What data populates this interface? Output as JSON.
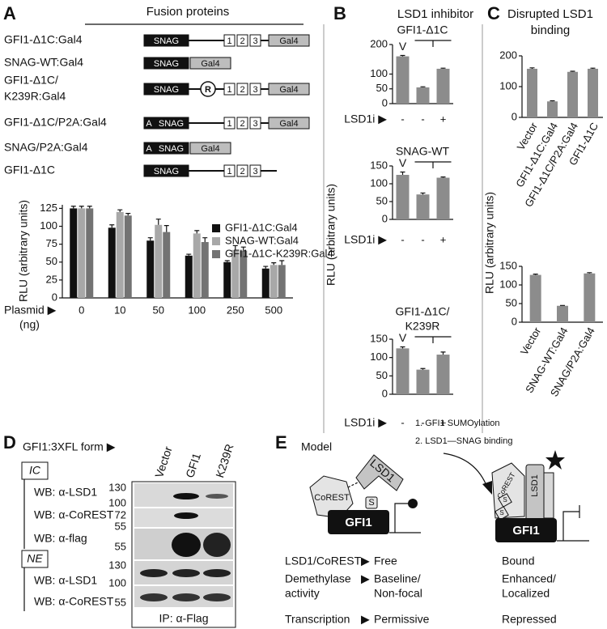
{
  "constructs": {
    "letter": "A",
    "header": "Fusion proteins",
    "rows": [
      [
        "GFI1-Δ1C:Gal4"
      ],
      [
        "SNAG-WT:Gal4"
      ],
      [
        "GFI1-Δ1C/",
        "K239R:Gal4"
      ],
      [
        "GFI1-Δ1C/P2A:Gal4"
      ],
      [
        "SNAG/P2A:Gal4"
      ],
      [
        "GFI1-Δ1C"
      ]
    ],
    "domains": {
      "snag": "SNAG",
      "gal4": "Gal4",
      "zf": [
        "1",
        "2",
        "3"
      ],
      "r": "R",
      "a": "A"
    }
  },
  "panel_B": {
    "letter": "B",
    "title": "LSD1 inhibitor"
  },
  "panel_C": {
    "letter": "C",
    "title": [
      "Disrupted LSD1",
      "binding"
    ]
  },
  "chart_data": [
    {
      "type": "bar",
      "ylabel": "RLU (arbitrary units)",
      "xlabel": "Plasmid ▶",
      "xunit": "(ng)",
      "categories": [
        "0",
        "10",
        "50",
        "100",
        "250",
        "500"
      ],
      "series": [
        {
          "name": "GFI1-Δ1C:Gal4",
          "color": "#111111",
          "values": [
            125,
            98,
            80,
            59,
            50,
            41
          ],
          "errors": [
            3,
            4,
            4,
            2,
            2,
            3
          ]
        },
        {
          "name": "SNAG-WT:Gal4",
          "color": "#a8a8a8",
          "values": [
            125,
            120,
            102,
            90,
            67,
            46
          ],
          "errors": [
            3,
            3,
            8,
            4,
            6,
            3
          ]
        },
        {
          "name": "GFI1-Δ1C-K239R:Gal4",
          "color": "#737373",
          "values": [
            125,
            115,
            92,
            78,
            66,
            46
          ],
          "errors": [
            3,
            3,
            9,
            6,
            5,
            6
          ]
        }
      ],
      "ylim": [
        0,
        130
      ],
      "yticks": [
        0,
        25,
        50,
        75,
        100,
        125
      ],
      "legend": "upper right"
    },
    {
      "type": "bar",
      "ylabel": "RLU (arbitrary units)",
      "subtitle": [
        "GFI1-Δ1C"
      ],
      "annotation": "V",
      "xlabel": "LSD1i ▶",
      "categories": [
        "-",
        "-",
        "+"
      ],
      "values": [
        160,
        55,
        118
      ],
      "errors": [
        3,
        2,
        2
      ],
      "color": "#8c8c8c",
      "ylim": [
        0,
        200
      ],
      "yticks": [
        0,
        50,
        100,
        200
      ]
    },
    {
      "type": "bar",
      "subtitle": [
        "SNAG-WT"
      ],
      "annotation": "V",
      "xlabel": "LSD1i ▶",
      "categories": [
        "-",
        "-",
        "+"
      ],
      "values": [
        125,
        70,
        117
      ],
      "errors": [
        8,
        4,
        2
      ],
      "color": "#8c8c8c",
      "ylim": [
        0,
        150
      ],
      "yticks": [
        0,
        50,
        100,
        150
      ]
    },
    {
      "type": "bar",
      "subtitle": [
        "GFI1-Δ1C/",
        "K239R"
      ],
      "annotation": "V",
      "xlabel": "LSD1i ▶",
      "categories": [
        "-",
        "-",
        "+"
      ],
      "values": [
        125,
        67,
        108
      ],
      "errors": [
        4,
        3,
        7
      ],
      "color": "#8c8c8c",
      "ylim": [
        0,
        150
      ],
      "yticks": [
        0,
        50,
        100,
        150
      ]
    },
    {
      "type": "bar",
      "ylabel": "RLU (arbitrary units)",
      "categories": [
        "Vector",
        "GFI1-Δ1C:Gal4",
        "GFI1-Δ1C/P2A:Gal4",
        "GFI1-Δ1C"
      ],
      "values": [
        158,
        52,
        148,
        158
      ],
      "errors": [
        3,
        2,
        2,
        2
      ],
      "color": "#8c8c8c",
      "ylim": [
        0,
        200
      ],
      "yticks": [
        0,
        100,
        200
      ]
    },
    {
      "type": "bar",
      "categories": [
        "Vector",
        "SNAG-WT:Gal4",
        "SNAG/P2A:Gal4"
      ],
      "values": [
        127,
        44,
        131
      ],
      "errors": [
        2,
        1,
        2
      ],
      "color": "#8c8c8c",
      "ylim": [
        0,
        150
      ],
      "yticks": [
        0,
        50,
        100,
        150
      ]
    }
  ],
  "blot": {
    "letter": "D",
    "form_label": "GFI1:3XFL form ▶",
    "lanes": [
      "Vector",
      "GFI1",
      "K239R"
    ],
    "groups": [
      {
        "name": "IC",
        "rows": [
          "WB: α-LSD1",
          "WB: α-CoREST",
          "WB: α-flag"
        ]
      },
      {
        "name": "NE",
        "rows": [
          "WB: α-LSD1",
          "WB: α-CoREST"
        ]
      }
    ],
    "markers": [
      130,
      100,
      72,
      55,
      55,
      130,
      100,
      55
    ],
    "ip": "IP: α-Flag"
  },
  "model": {
    "letter": "E",
    "title": "Model",
    "steps": [
      "1. GFI1 SUMOylation",
      "2. LSD1—SNAG binding"
    ],
    "labels": {
      "lsd1": "LSD1",
      "corest": "CoREST",
      "sumo": "S",
      "gfi1": "GFI1"
    },
    "arrow": "▶",
    "table": [
      {
        "label": [
          "LSD1/CoREST"
        ],
        "free": [
          "Free"
        ],
        "bound": [
          "Bound"
        ]
      },
      {
        "label": [
          "Demethylase",
          "activity"
        ],
        "free": [
          "Baseline/",
          "Non-focal"
        ],
        "bound": [
          "Enhanced/",
          "Localized"
        ]
      },
      {
        "label": [
          "Transcription"
        ],
        "free": [
          "Permissive"
        ],
        "bound": [
          "Repressed"
        ]
      }
    ]
  }
}
